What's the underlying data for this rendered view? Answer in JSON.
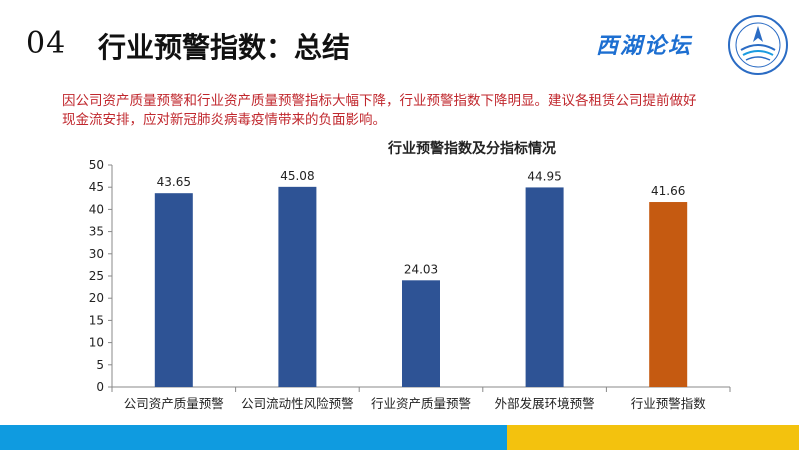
{
  "header": {
    "section_number": "04",
    "title": "行业预警指数：总结",
    "brand": "西湖论坛"
  },
  "summary_text": "因公司资产质量预警和行业资产质量预警指标大幅下降，行业预警指数下降明显。建议各租赁公司提前做好现金流安排，应对新冠肺炎病毒疫情带来的负面影响。",
  "colors": {
    "bar_default": "#2e5395",
    "bar_highlight": "#c55a11",
    "footer_left": "#0f9be0",
    "footer_right": "#f3c20e"
  },
  "chart_data": {
    "type": "bar",
    "title": "行业预警指数及分指标情况",
    "categories": [
      "公司资产质量预警",
      "公司流动性风险预警",
      "行业资产质量预警",
      "外部发展环境预警",
      "行业预警指数"
    ],
    "values": [
      43.65,
      45.08,
      24.03,
      44.95,
      41.66
    ],
    "value_labels": [
      "43.65",
      "45.08",
      "24.03",
      "44.95",
      "41.66"
    ],
    "highlight_index": 4,
    "ylim": [
      0,
      50
    ],
    "yticks": [
      "0",
      "5",
      "10",
      "15",
      "20",
      "25",
      "30",
      "35",
      "40",
      "45",
      "50"
    ],
    "grid": false,
    "legend": "none"
  }
}
